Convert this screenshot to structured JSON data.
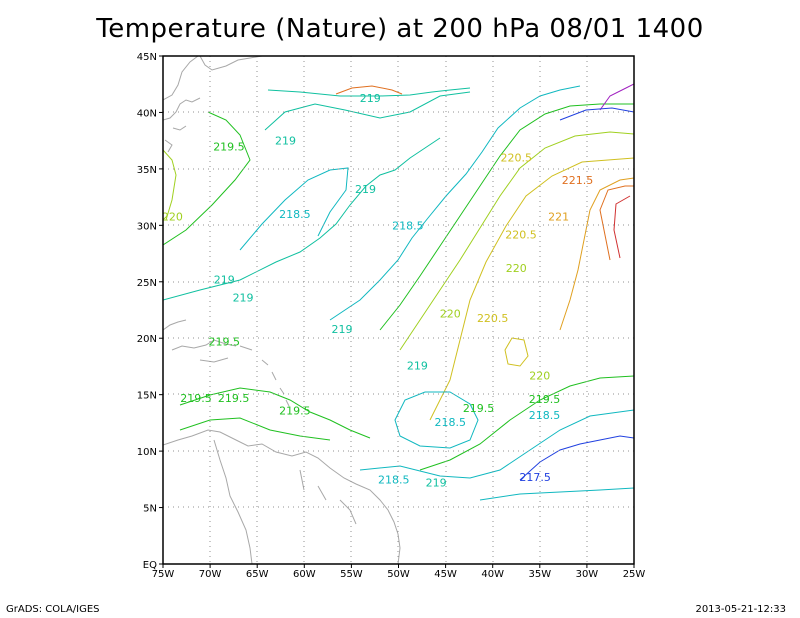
{
  "title": "Temperature (Nature) at 200 hPa 08/01 1400",
  "footer": {
    "left": "GrADS: COLA/IGES",
    "right": "2013-05-21-12:33"
  },
  "axes": {
    "lon_ticks": [
      "75W",
      "70W",
      "65W",
      "60W",
      "55W",
      "50W",
      "45W",
      "40W",
      "35W",
      "30W",
      "25W"
    ],
    "lat_ticks": [
      "EQ",
      "5N",
      "10N",
      "15N",
      "20N",
      "25N",
      "30N",
      "35N",
      "40N",
      "45N"
    ]
  },
  "map_data": {
    "type": "contour",
    "variable": "Temperature",
    "level_hPa": 200,
    "lon_range": [
      -75,
      -25
    ],
    "lat_range": [
      0,
      45
    ],
    "grid": true,
    "contour_labels": [
      {
        "text": "219",
        "lon": -53,
        "lat": 41.3,
        "color": "#10c0a0"
      },
      {
        "text": "219",
        "lon": -62,
        "lat": 37.5,
        "color": "#10c0a0"
      },
      {
        "text": "219.5",
        "lon": -68,
        "lat": 37,
        "color": "#20c020"
      },
      {
        "text": "219",
        "lon": -53.5,
        "lat": 33.2,
        "color": "#10c0a0"
      },
      {
        "text": "218.5",
        "lon": -61,
        "lat": 31,
        "color": "#10b8c0"
      },
      {
        "text": "218.5",
        "lon": -49,
        "lat": 30,
        "color": "#10b8c0"
      },
      {
        "text": "220",
        "lon": -74,
        "lat": 30.8,
        "color": "#a0d020"
      },
      {
        "text": "220.5",
        "lon": -37.5,
        "lat": 36,
        "color": "#d0c020"
      },
      {
        "text": "221.5",
        "lon": -31,
        "lat": 34,
        "color": "#e07020"
      },
      {
        "text": "221",
        "lon": -33,
        "lat": 30.8,
        "color": "#e0a020"
      },
      {
        "text": "220.5",
        "lon": -37,
        "lat": 29.2,
        "color": "#d0c020"
      },
      {
        "text": "220",
        "lon": -37.5,
        "lat": 26.2,
        "color": "#a0d020"
      },
      {
        "text": "219",
        "lon": -68.5,
        "lat": 25.2,
        "color": "#10c0a0"
      },
      {
        "text": "219",
        "lon": -66.5,
        "lat": 23.6,
        "color": "#10c0a0"
      },
      {
        "text": "219",
        "lon": -56,
        "lat": 20.8,
        "color": "#10c0a0"
      },
      {
        "text": "220",
        "lon": -44.5,
        "lat": 22.2,
        "color": "#a0d020"
      },
      {
        "text": "220.5",
        "lon": -40,
        "lat": 21.8,
        "color": "#d0c020"
      },
      {
        "text": "219.5",
        "lon": -68.5,
        "lat": 19.7,
        "color": "#20c020"
      },
      {
        "text": "220",
        "lon": -35,
        "lat": 16.7,
        "color": "#a0d020"
      },
      {
        "text": "219",
        "lon": -48,
        "lat": 17.6,
        "color": "#10c0a0"
      },
      {
        "text": "219.5",
        "lon": -71.5,
        "lat": 14.7,
        "color": "#20c020"
      },
      {
        "text": "219.5",
        "lon": -67.5,
        "lat": 14.7,
        "color": "#20c020"
      },
      {
        "text": "219.5",
        "lon": -61,
        "lat": 13.6,
        "color": "#20c020"
      },
      {
        "text": "219.5",
        "lon": -41.5,
        "lat": 13.8,
        "color": "#20c020"
      },
      {
        "text": "219.5",
        "lon": -34.5,
        "lat": 14.6,
        "color": "#20c020"
      },
      {
        "text": "218.5",
        "lon": -34.5,
        "lat": 13.2,
        "color": "#10b8c0"
      },
      {
        "text": "218.5",
        "lon": -44.5,
        "lat": 12.6,
        "color": "#10b8c0"
      },
      {
        "text": "218.5",
        "lon": -50.5,
        "lat": 7.5,
        "color": "#10b8c0"
      },
      {
        "text": "219",
        "lon": -46,
        "lat": 7.2,
        "color": "#10c0a0"
      },
      {
        "text": "217.5",
        "lon": -35.5,
        "lat": 7.7,
        "color": "#2040e0"
      }
    ]
  }
}
